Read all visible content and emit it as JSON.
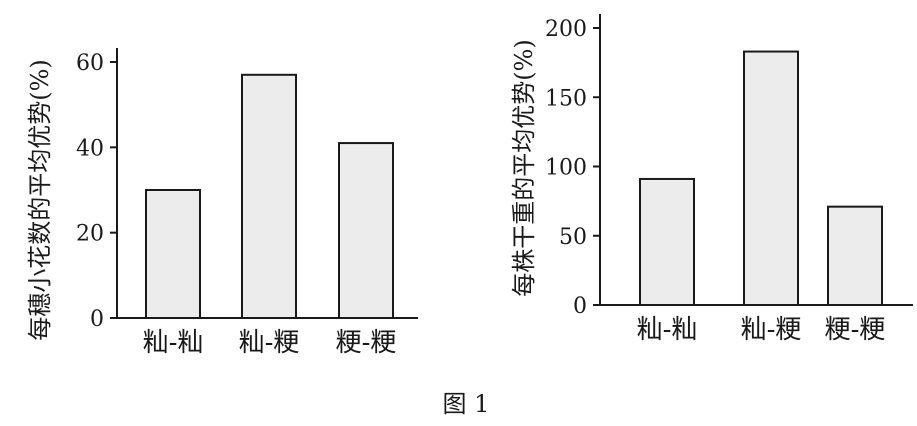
{
  "chart_data": [
    {
      "type": "bar",
      "categories": [
        "籼-籼",
        "籼-粳",
        "粳-粳"
      ],
      "values": [
        30,
        57,
        41
      ],
      "ylabel": "每穗小花数的平均优势(%)",
      "ylim": [
        0,
        60
      ],
      "yticks": [
        0,
        20,
        40,
        60
      ],
      "grid": false,
      "bar_color": "#ececec"
    },
    {
      "type": "bar",
      "categories": [
        "籼-籼",
        "籼-粳",
        "粳-粳"
      ],
      "values": [
        91,
        183,
        71
      ],
      "ylabel": "每株干重的平均优势(%)",
      "ylim": [
        0,
        200
      ],
      "yticks": [
        0,
        50,
        100,
        150,
        200
      ],
      "grid": false,
      "bar_color": "#ececec"
    }
  ],
  "caption": "图 1"
}
